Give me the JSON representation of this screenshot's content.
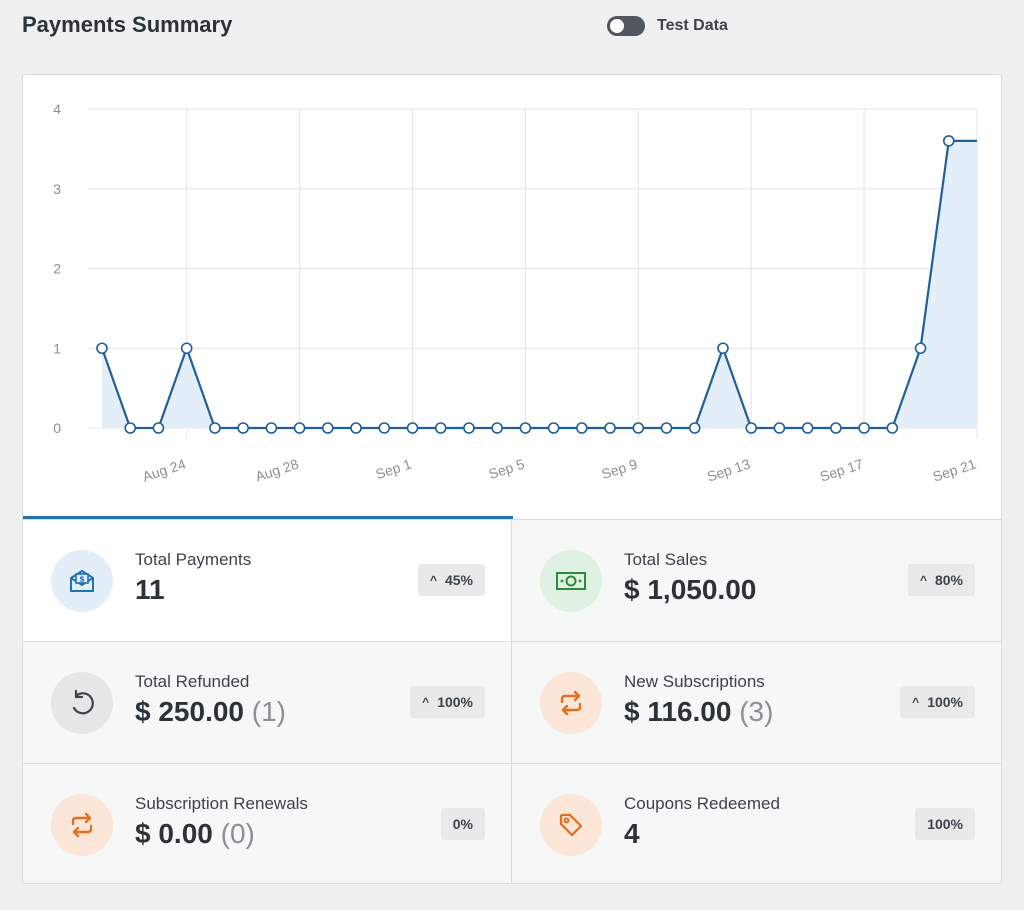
{
  "header": {
    "title": "Payments Summary",
    "test_data_label": "Test Data",
    "test_data_enabled": false
  },
  "chart_data": {
    "type": "area",
    "title": "",
    "xlabel": "",
    "ylabel": "",
    "ylim": [
      0,
      4
    ],
    "yticks": [
      "0",
      "1",
      "2",
      "3",
      "4"
    ],
    "x_tick_labels": [
      "Aug 24",
      "Aug 28",
      "Sep 1",
      "Sep 5",
      "Sep 9",
      "Sep 13",
      "Sep 17",
      "Sep 21"
    ],
    "x": [
      "Aug 21",
      "Aug 22",
      "Aug 23",
      "Aug 24",
      "Aug 25",
      "Aug 26",
      "Aug 27",
      "Aug 28",
      "Aug 29",
      "Aug 30",
      "Aug 31",
      "Sep 1",
      "Sep 2",
      "Sep 3",
      "Sep 4",
      "Sep 5",
      "Sep 6",
      "Sep 7",
      "Sep 8",
      "Sep 9",
      "Sep 10",
      "Sep 11",
      "Sep 12",
      "Sep 13",
      "Sep 14",
      "Sep 15",
      "Sep 16",
      "Sep 17",
      "Sep 18",
      "Sep 19",
      "Sep 20",
      "Sep 21"
    ],
    "series": [
      {
        "values": [
          1,
          0,
          0,
          1,
          0,
          0,
          0,
          0,
          0,
          0,
          0,
          0,
          0,
          0,
          0,
          0,
          0,
          0,
          0,
          0,
          0,
          0,
          1,
          0,
          0,
          0,
          0,
          0,
          0,
          1,
          3.6,
          3.6
        ]
      }
    ],
    "grid": true,
    "colors": {
      "line": "#1f5f9a",
      "fill": "#e3eef8",
      "grid": "#e4e4e6",
      "point_fill": "#ffffff"
    }
  },
  "stats": [
    {
      "label": "Total Payments",
      "value": "11",
      "count": "",
      "badge": "45%",
      "trend": "up",
      "icon": "envelope-dollar-icon",
      "color": "#2271b1",
      "bg": "#e3eef8"
    },
    {
      "label": "Total Sales",
      "value": "$ 1,050.00",
      "count": "",
      "badge": "80%",
      "trend": "up",
      "icon": "banknote-icon",
      "color": "#2e8b3a",
      "bg": "#dff1e2"
    },
    {
      "label": "Total Refunded",
      "value": "$ 250.00",
      "count": "(1)",
      "badge": "100%",
      "trend": "up",
      "icon": "refund-icon",
      "color": "#3c434a",
      "bg": "#e6e6e7"
    },
    {
      "label": "New Subscriptions",
      "value": "$ 116.00",
      "count": "(3)",
      "badge": "100%",
      "trend": "up",
      "icon": "repeat-icon",
      "color": "#e26f1d",
      "bg": "#fbe6d7"
    },
    {
      "label": "Subscription Renewals",
      "value": "$ 0.00",
      "count": "(0)",
      "badge": "0%",
      "trend": "none",
      "icon": "repeat-icon",
      "color": "#e26f1d",
      "bg": "#fbe6d7"
    },
    {
      "label": "Coupons Redeemed",
      "value": "4",
      "count": "",
      "badge": "100%",
      "trend": "none",
      "icon": "tag-icon",
      "color": "#e26f1d",
      "bg": "#fbe6d7"
    }
  ],
  "caret_up": "^"
}
